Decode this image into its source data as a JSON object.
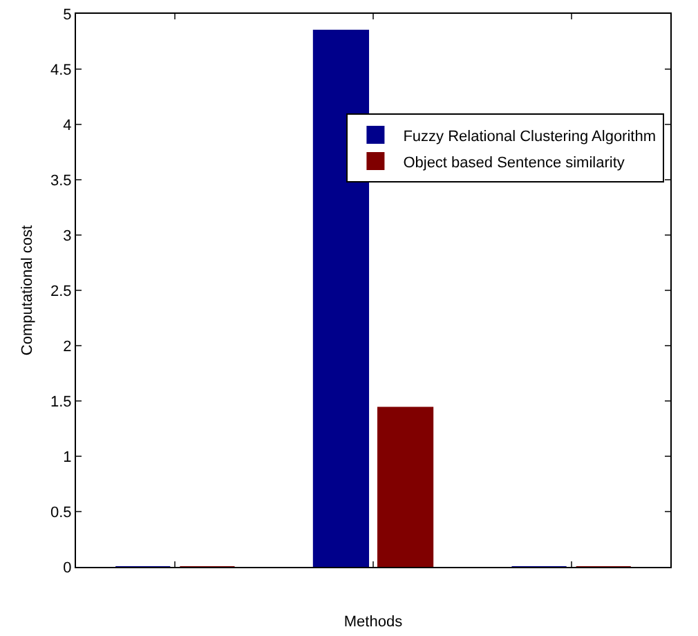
{
  "chart_data": {
    "type": "bar",
    "xlabel": "Methods",
    "ylabel": "Computational cost",
    "categories": [
      null,
      null,
      null
    ],
    "series": [
      {
        "name": "Fuzzy Relational Clustering Algorithm",
        "color": "#00008b",
        "values": [
          0,
          4.85,
          0
        ]
      },
      {
        "name": "Object based Sentence similarity",
        "color": "#800000",
        "values": [
          0,
          1.44,
          0
        ]
      }
    ],
    "ylim": [
      0,
      5
    ],
    "yticks": [
      0,
      0.5,
      1,
      1.5,
      2,
      2.5,
      3,
      3.5,
      4,
      4.5,
      5
    ],
    "tick_labels": "y",
    "legend": "top right",
    "grid": false
  }
}
